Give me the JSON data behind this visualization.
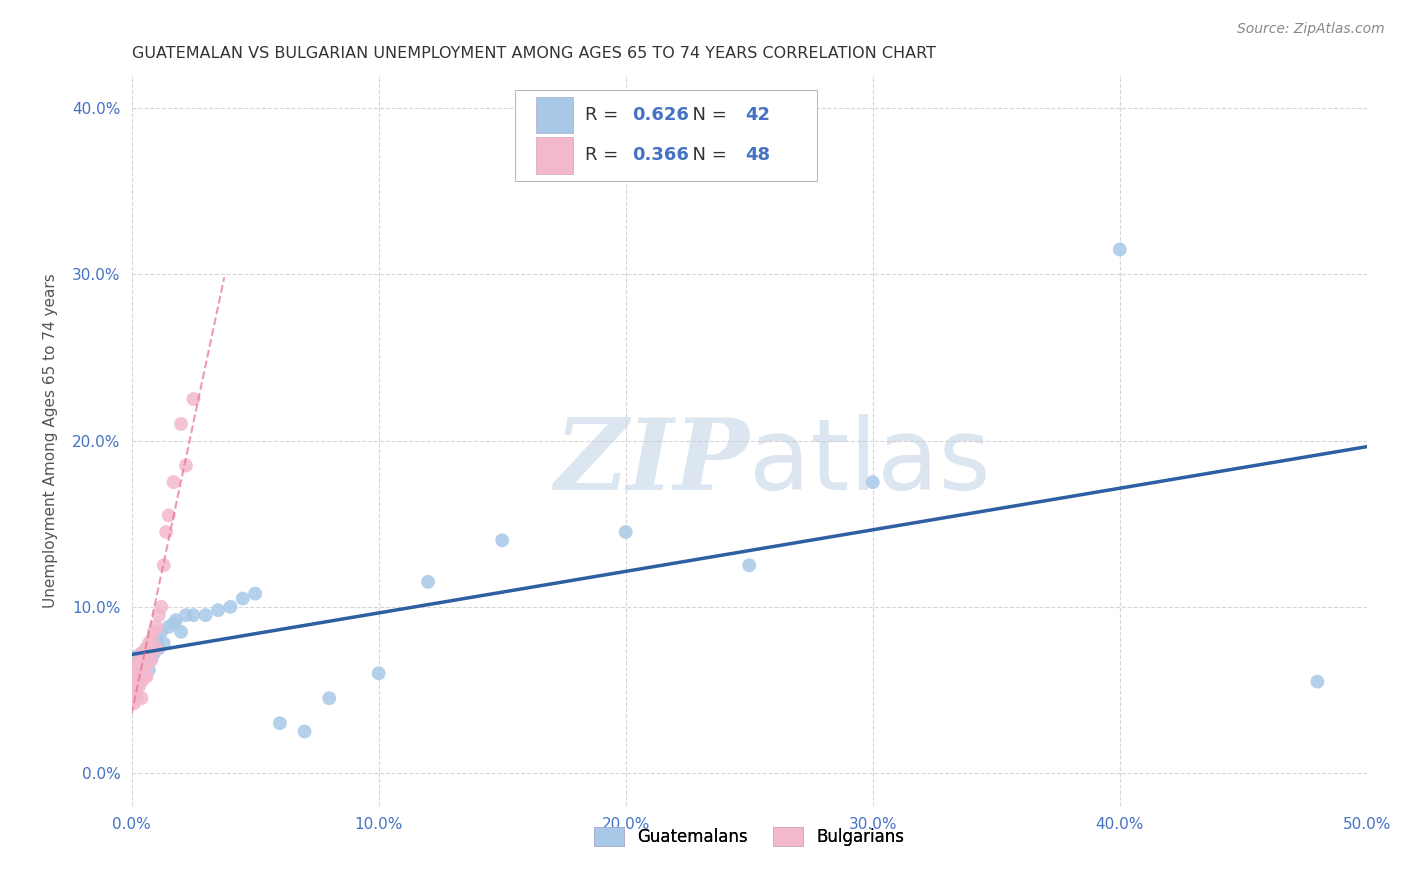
{
  "title": "GUATEMALAN VS BULGARIAN UNEMPLOYMENT AMONG AGES 65 TO 74 YEARS CORRELATION CHART",
  "source": "Source: ZipAtlas.com",
  "ylabel": "Unemployment Among Ages 65 to 74 years",
  "xlim": [
    0.0,
    0.5
  ],
  "ylim": [
    -0.02,
    0.42
  ],
  "xticks": [
    0.0,
    0.1,
    0.2,
    0.3,
    0.4,
    0.5
  ],
  "yticks": [
    0.0,
    0.1,
    0.2,
    0.3,
    0.4
  ],
  "xticklabels": [
    "0.0%",
    "10.0%",
    "20.0%",
    "30.0%",
    "40.0%",
    "50.0%"
  ],
  "yticklabels": [
    "0.0%",
    "10.0%",
    "20.0%",
    "30.0%",
    "40.0%"
  ],
  "tick_color": "#4472c4",
  "background_color": "#ffffff",
  "grid_color": "#cccccc",
  "watermark_zip": "ZIP",
  "watermark_atlas": "atlas",
  "watermark_color": "#dce6f1",
  "guatemalan_R": 0.626,
  "guatemalan_N": 42,
  "bulgarian_R": 0.366,
  "bulgarian_N": 48,
  "guatemalan_color": "#a8c8e8",
  "bulgarian_color": "#f4b8cc",
  "guatemalan_line_color": "#2e5fa3",
  "bulgarian_line_color": "#e87090",
  "legend_number_color": "#4472c4",
  "legend_text_color": "#333333",
  "guatemalan_x": [
    0.001,
    0.001,
    0.002,
    0.002,
    0.003,
    0.003,
    0.004,
    0.004,
    0.005,
    0.005,
    0.006,
    0.006,
    0.007,
    0.008,
    0.008,
    0.009,
    0.01,
    0.011,
    0.012,
    0.013,
    0.015,
    0.017,
    0.018,
    0.02,
    0.022,
    0.025,
    0.03,
    0.035,
    0.04,
    0.045,
    0.05,
    0.06,
    0.07,
    0.08,
    0.1,
    0.12,
    0.15,
    0.2,
    0.25,
    0.3,
    0.4,
    0.48
  ],
  "guatemalan_y": [
    0.065,
    0.055,
    0.06,
    0.07,
    0.058,
    0.068,
    0.062,
    0.072,
    0.058,
    0.065,
    0.068,
    0.075,
    0.062,
    0.07,
    0.078,
    0.072,
    0.08,
    0.075,
    0.085,
    0.078,
    0.088,
    0.09,
    0.092,
    0.085,
    0.095,
    0.095,
    0.095,
    0.098,
    0.1,
    0.105,
    0.108,
    0.03,
    0.025,
    0.045,
    0.06,
    0.115,
    0.14,
    0.145,
    0.125,
    0.175,
    0.315,
    0.055
  ],
  "bulgarian_x": [
    0.001,
    0.001,
    0.001,
    0.001,
    0.001,
    0.001,
    0.001,
    0.001,
    0.001,
    0.001,
    0.002,
    0.002,
    0.002,
    0.002,
    0.002,
    0.002,
    0.002,
    0.003,
    0.003,
    0.003,
    0.003,
    0.003,
    0.004,
    0.004,
    0.004,
    0.004,
    0.005,
    0.005,
    0.005,
    0.006,
    0.006,
    0.006,
    0.007,
    0.007,
    0.008,
    0.008,
    0.009,
    0.01,
    0.01,
    0.011,
    0.012,
    0.013,
    0.014,
    0.015,
    0.017,
    0.02,
    0.022,
    0.025
  ],
  "bulgarian_y": [
    0.055,
    0.048,
    0.052,
    0.06,
    0.058,
    0.045,
    0.05,
    0.042,
    0.048,
    0.052,
    0.055,
    0.06,
    0.045,
    0.062,
    0.058,
    0.065,
    0.048,
    0.062,
    0.055,
    0.068,
    0.052,
    0.058,
    0.065,
    0.072,
    0.055,
    0.045,
    0.068,
    0.062,
    0.058,
    0.075,
    0.065,
    0.058,
    0.078,
    0.072,
    0.08,
    0.068,
    0.085,
    0.088,
    0.075,
    0.095,
    0.1,
    0.125,
    0.145,
    0.155,
    0.175,
    0.21,
    0.185,
    0.225
  ]
}
